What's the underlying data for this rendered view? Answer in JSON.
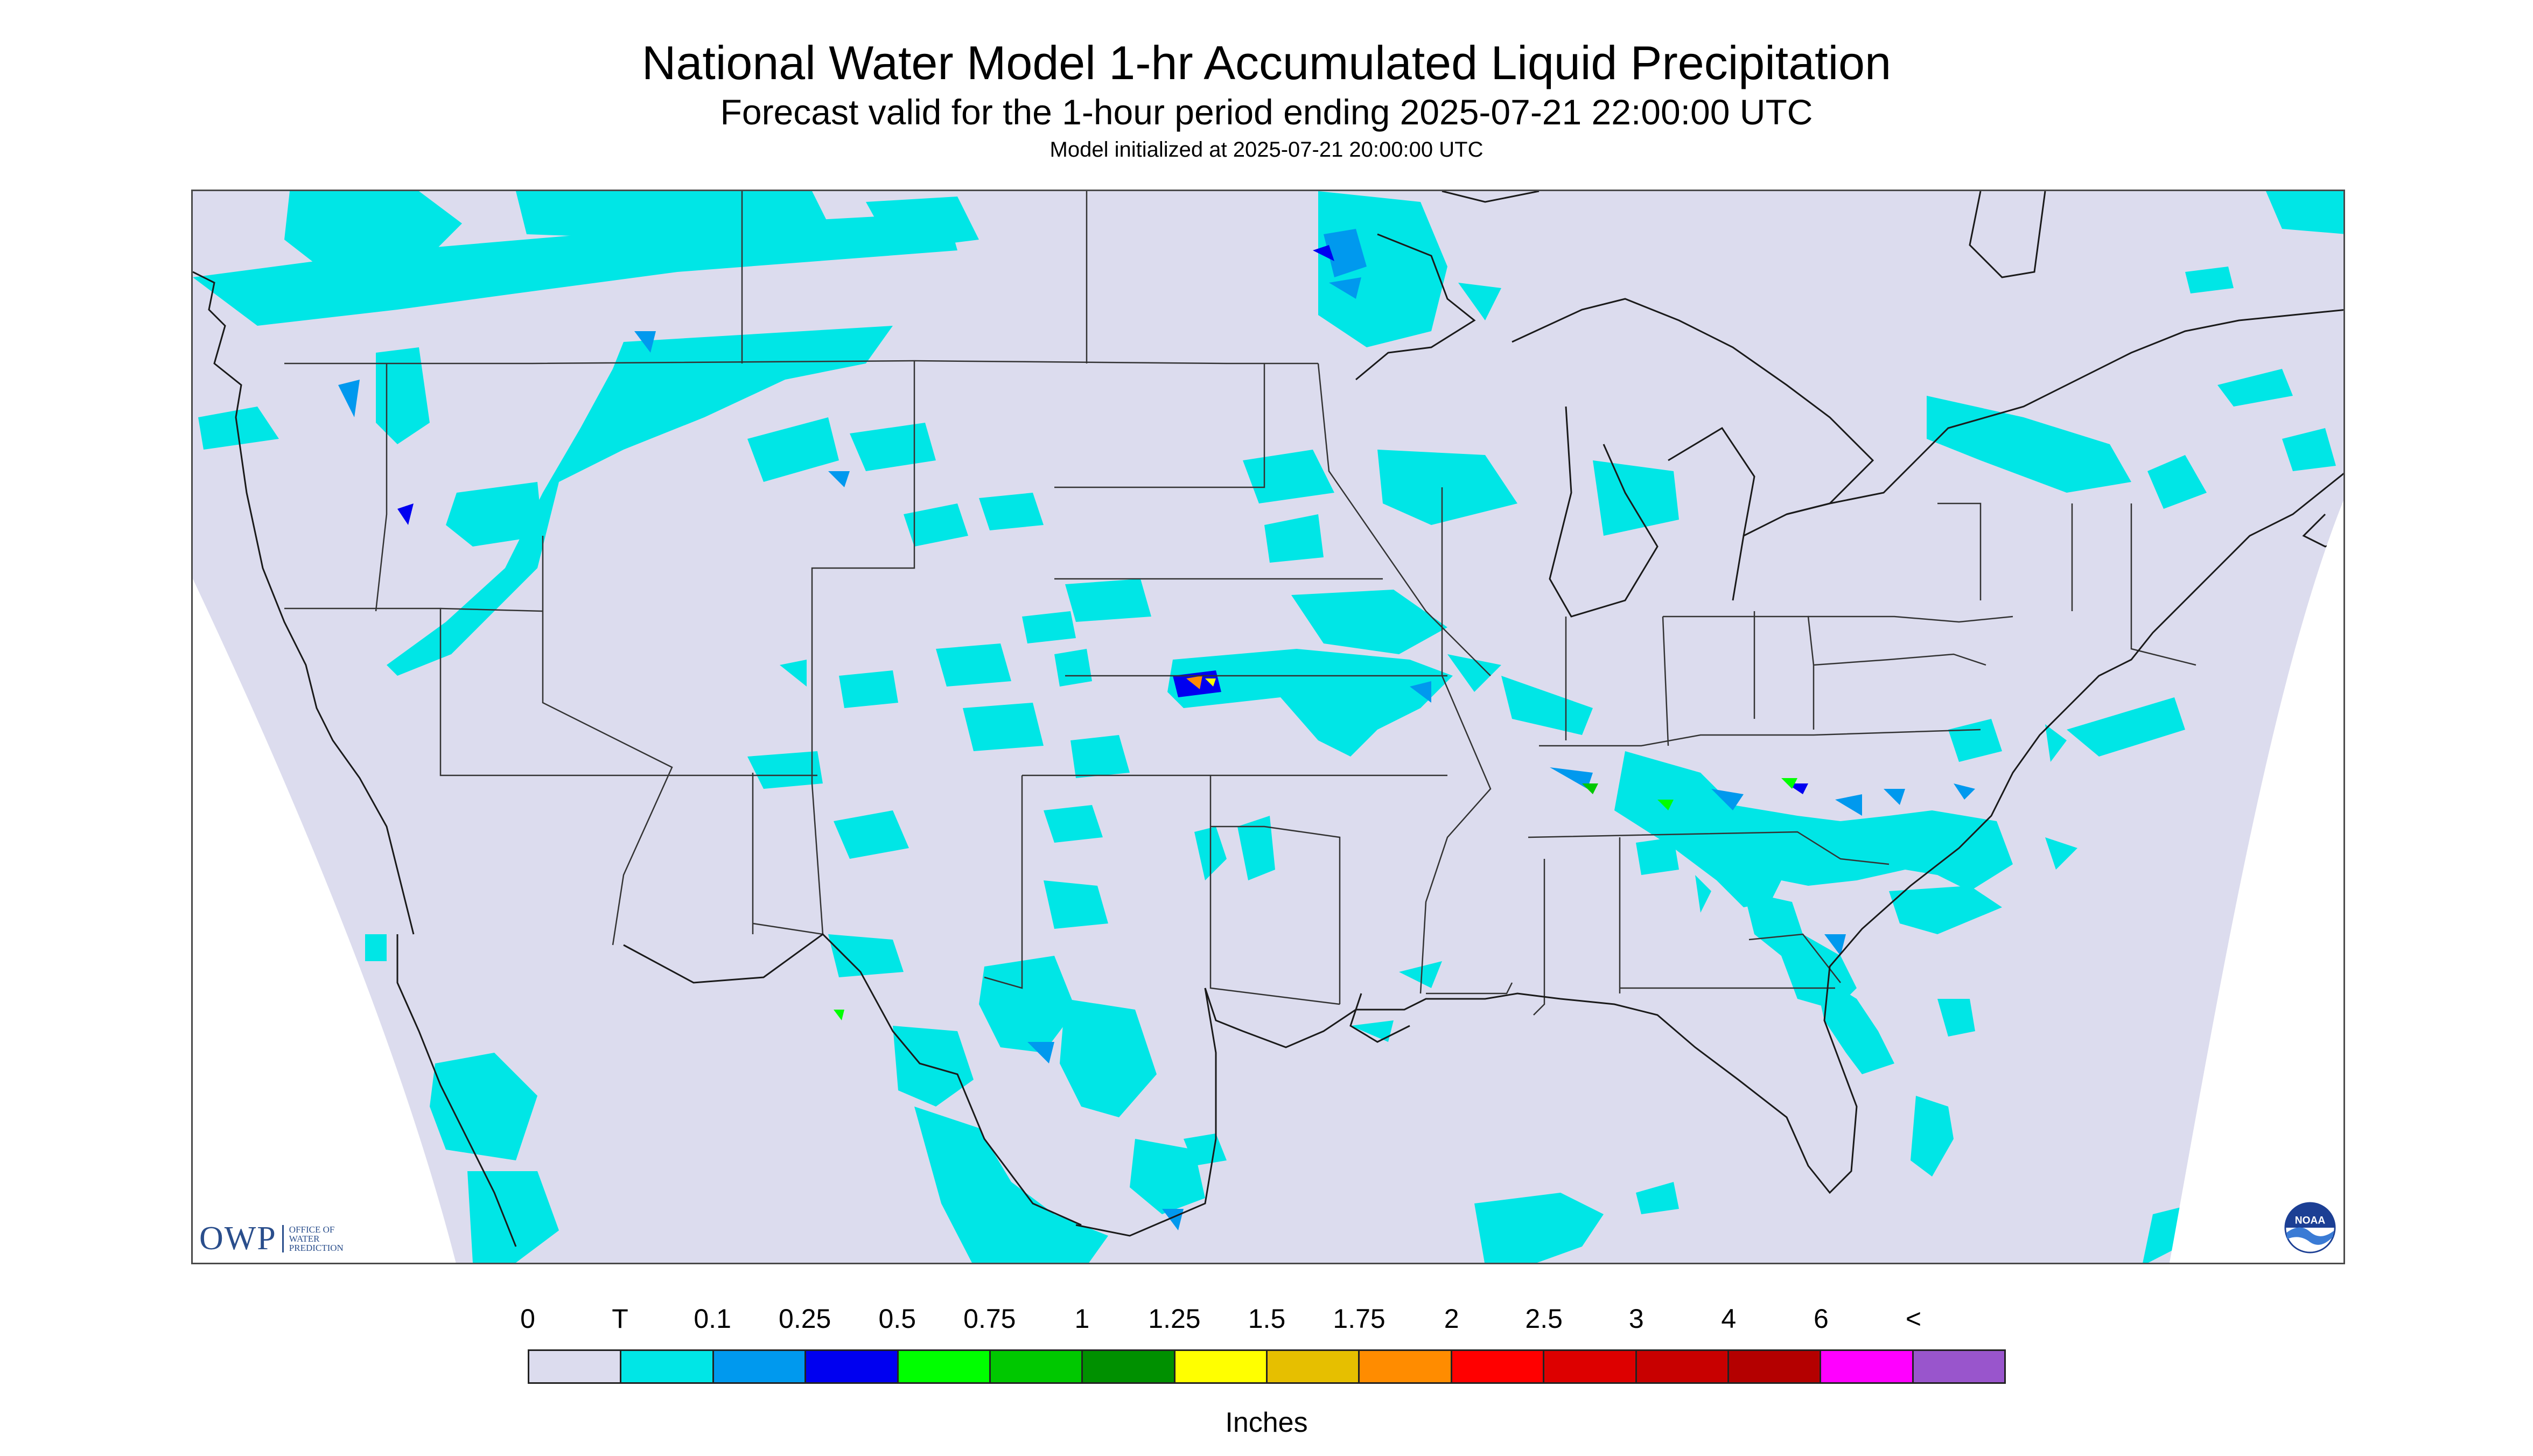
{
  "title": "National Water Model 1-hr Accumulated Liquid Precipitation",
  "subtitle": "Forecast valid for the 1-hour period ending 2025-07-21 22:00:00 UTC",
  "init_line": "Model initialized at 2025-07-21 20:00:00 UTC",
  "map": {
    "region": "Contiguous United States and surrounding areas",
    "background_color": "#dcdcee",
    "outside_domain_color": "#ffffff",
    "boundary_color": "#333333"
  },
  "logos": {
    "owp": {
      "letters": "OWP",
      "line1": "Office of",
      "line2": "Water",
      "line3": "Prediction"
    },
    "noaa": {
      "text": "NOAA"
    }
  },
  "legend": {
    "labels": [
      "0",
      "T",
      "0.1",
      "0.25",
      "0.5",
      "0.75",
      "1",
      "1.25",
      "1.5",
      "1.75",
      "2",
      "2.5",
      "3",
      "4",
      "6",
      "<"
    ],
    "colors": [
      "#dcdcee",
      "#00e6e6",
      "#0099ee",
      "#0000f0",
      "#00ff00",
      "#00c800",
      "#009000",
      "#ffff00",
      "#e6bf00",
      "#ff8c00",
      "#ff0000",
      "#dd0000",
      "#c80000",
      "#b40000",
      "#ff00ff",
      "#9955cc"
    ],
    "units": "Inches"
  }
}
